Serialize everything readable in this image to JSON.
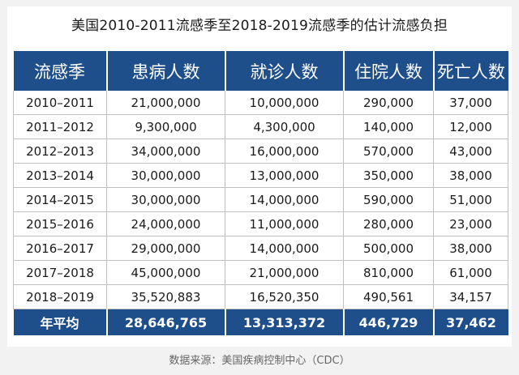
{
  "title": "美国2010-2011流感季至2018-2019流感季的估计流感负担",
  "source": "数据来源：美国疾病控制中心（CDC）",
  "colors": {
    "header_bg": "#1f4f8b",
    "header_text": "#ffffff",
    "grid": "#bfbfbf"
  },
  "chart_data": {
    "type": "table",
    "title": "美国2010-2011流感季至2018-2019流感季的估计流感负担",
    "columns": [
      "流感季",
      "患病人数",
      "就诊人数",
      "住院人数",
      "死亡人数"
    ],
    "rows": [
      [
        "2010–2011",
        "21,000,000",
        "10,000,000",
        "290,000",
        "37,000"
      ],
      [
        "2011–2012",
        "9,300,000",
        "4,300,000",
        "140,000",
        "12,000"
      ],
      [
        "2012–2013",
        "34,000,000",
        "16,000,000",
        "570,000",
        "43,000"
      ],
      [
        "2013–2014",
        "30,000,000",
        "13,000,000",
        "350,000",
        "38,000"
      ],
      [
        "2014–2015",
        "30,000,000",
        "14,000,000",
        "590,000",
        "51,000"
      ],
      [
        "2015–2016",
        "24,000,000",
        "11,000,000",
        "280,000",
        "23,000"
      ],
      [
        "2016–2017",
        "29,000,000",
        "14,000,000",
        "500,000",
        "38,000"
      ],
      [
        "2017–2018",
        "45,000,000",
        "21,000,000",
        "810,000",
        "61,000"
      ],
      [
        "2018–2019",
        "35,520,883",
        "16,520,350",
        "490,561",
        "34,157"
      ]
    ],
    "footer": [
      "年平均",
      "28,646,765",
      "13,313,372",
      "446,729",
      "37,462"
    ]
  }
}
